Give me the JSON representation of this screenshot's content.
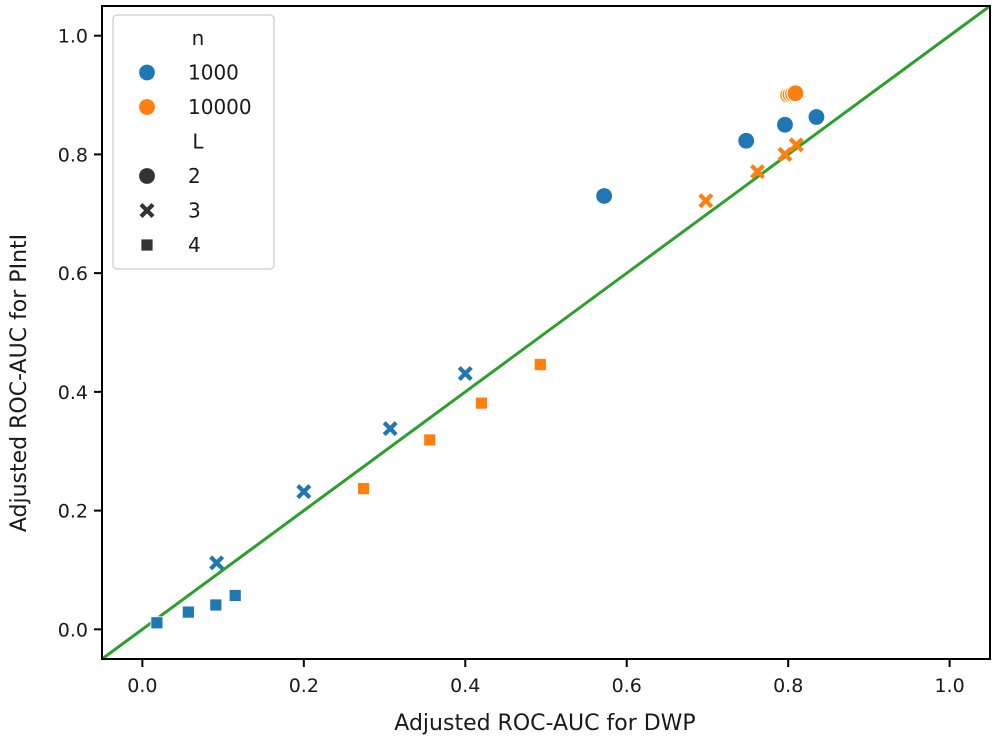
{
  "chart_data": {
    "type": "scatter",
    "title": "",
    "xlabel": "Adjusted ROC-AUC for DWP",
    "ylabel": "Adjusted ROC-AUC for PIntI",
    "xlim": [
      -0.05,
      1.05
    ],
    "ylim": [
      -0.05,
      1.05
    ],
    "xticks": [
      0.0,
      0.2,
      0.4,
      0.6,
      0.8,
      1.0
    ],
    "yticks": [
      0.0,
      0.2,
      0.4,
      0.6,
      0.8,
      1.0
    ],
    "xtick_labels": [
      "0.0",
      "0.2",
      "0.4",
      "0.6",
      "0.8",
      "1.0"
    ],
    "ytick_labels": [
      "0.0",
      "0.2",
      "0.4",
      "0.6",
      "0.8",
      "1.0"
    ],
    "reference_line": {
      "x": [
        -0.05,
        1.05
      ],
      "y": [
        -0.05,
        1.05
      ],
      "color": "#2ca02c"
    },
    "legend": {
      "placement": "top-left",
      "hue_title": "n",
      "hue_entries": [
        {
          "label": "1000",
          "color": "#1f77b4"
        },
        {
          "label": "10000",
          "color": "#ff7f0e"
        }
      ],
      "style_title": "L",
      "style_entries": [
        {
          "label": "2",
          "marker": "circle"
        },
        {
          "label": "3",
          "marker": "x"
        },
        {
          "label": "4",
          "marker": "square"
        }
      ],
      "marker_color": "#333333"
    },
    "series": [
      {
        "n": "1000",
        "L": "2",
        "color": "#1f77b4",
        "marker": "circle",
        "points": [
          {
            "x": 0.572,
            "y": 0.73
          },
          {
            "x": 0.748,
            "y": 0.823
          },
          {
            "x": 0.796,
            "y": 0.85
          },
          {
            "x": 0.835,
            "y": 0.863
          }
        ]
      },
      {
        "n": "1000",
        "L": "3",
        "color": "#1f77b4",
        "marker": "x",
        "points": [
          {
            "x": 0.092,
            "y": 0.112
          },
          {
            "x": 0.2,
            "y": 0.232
          },
          {
            "x": 0.307,
            "y": 0.338
          },
          {
            "x": 0.4,
            "y": 0.431
          }
        ]
      },
      {
        "n": "1000",
        "L": "4",
        "color": "#1f77b4",
        "marker": "square",
        "points": [
          {
            "x": 0.018,
            "y": 0.011
          },
          {
            "x": 0.057,
            "y": 0.029
          },
          {
            "x": 0.091,
            "y": 0.041
          },
          {
            "x": 0.115,
            "y": 0.057
          }
        ]
      },
      {
        "n": "10000",
        "L": "2",
        "color": "#ff7f0e",
        "marker": "circle",
        "points": [
          {
            "x": 0.8,
            "y": 0.9
          },
          {
            "x": 0.803,
            "y": 0.901
          },
          {
            "x": 0.806,
            "y": 0.902
          },
          {
            "x": 0.809,
            "y": 0.903
          }
        ]
      },
      {
        "n": "10000",
        "L": "3",
        "color": "#ff7f0e",
        "marker": "x",
        "points": [
          {
            "x": 0.698,
            "y": 0.722
          },
          {
            "x": 0.762,
            "y": 0.771
          },
          {
            "x": 0.796,
            "y": 0.8
          },
          {
            "x": 0.81,
            "y": 0.816
          }
        ]
      },
      {
        "n": "10000",
        "L": "4",
        "color": "#ff7f0e",
        "marker": "square",
        "points": [
          {
            "x": 0.274,
            "y": 0.237
          },
          {
            "x": 0.356,
            "y": 0.319
          },
          {
            "x": 0.42,
            "y": 0.381
          },
          {
            "x": 0.493,
            "y": 0.446
          }
        ]
      }
    ]
  }
}
